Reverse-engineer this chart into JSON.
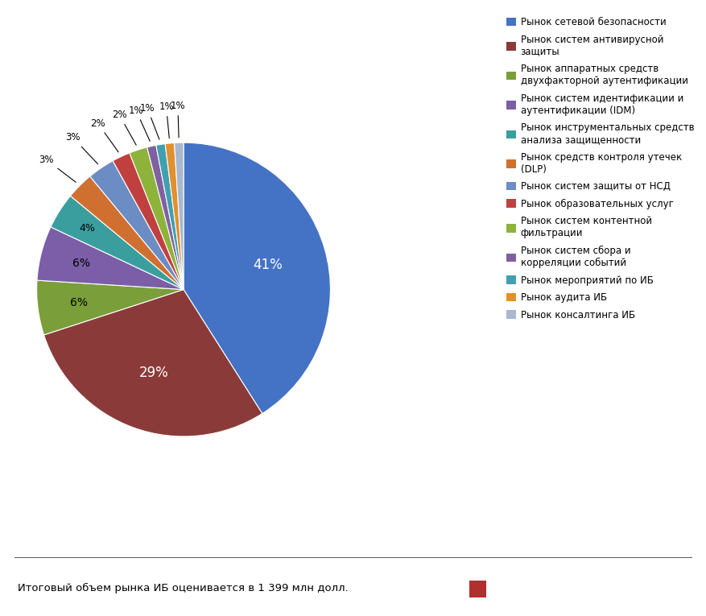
{
  "labels": [
    "Рынок сетевой безопасности",
    "Рынок систем антивирусной\nзащиты",
    "Рынок аппаратных средств\nдвухфакторной аутентификации",
    "Рынок систем идентификации и\nаутентификации (IDM)",
    "Рынок инструментальных средств\nанализа защищенности",
    "Рынок средств контроля утечек\n(DLP)",
    "Рынок систем защиты от НСД",
    "Рынок образовательных услуг",
    "Рынок систем контентной\nфильтрации",
    "Рынок систем сбора и\nкорреляции событий",
    "Рынок мероприятий по ИБ",
    "Рынок аудита ИБ",
    "Рынок консалтинга ИБ"
  ],
  "values": [
    41,
    29,
    6,
    6,
    4,
    3,
    3,
    2,
    2,
    1,
    1,
    1,
    1
  ],
  "colors": [
    "#4472C4",
    "#8B3A3A",
    "#7A9E3A",
    "#7B5EA7",
    "#3A9E9E",
    "#D07030",
    "#6B8DC4",
    "#C04040",
    "#8DB33A",
    "#8060A0",
    "#40A0B0",
    "#E09030",
    "#A8B8D0"
  ],
  "pct_labels": [
    "41%",
    "29%",
    "6%",
    "6%",
    "4%",
    "3%",
    "3%",
    "2%",
    "2%",
    "1%",
    "1%",
    "1%",
    "1%"
  ],
  "footer_text": "Итоговый объем рынка ИБ оценивается в 1 399 млн долл.",
  "footer_square_color": "#B03030"
}
